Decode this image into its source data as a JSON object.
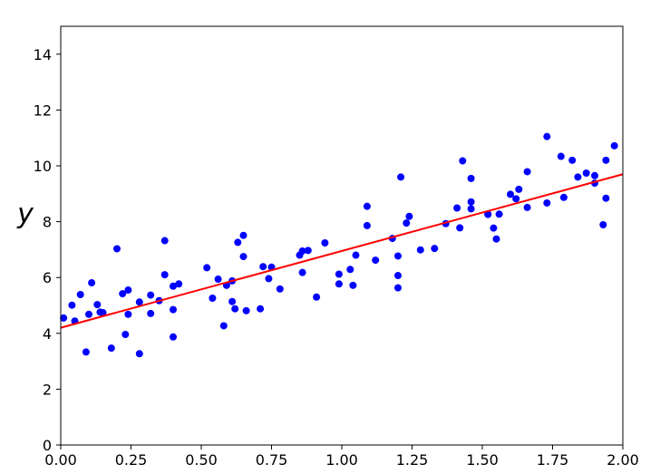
{
  "figure": {
    "background": "#ffffff",
    "spine_color": "#000000",
    "tick_color": "#000000"
  },
  "chart_data": {
    "type": "scatter",
    "title": "",
    "xlabel": "",
    "ylabel": "y",
    "xlim": [
      0.0,
      2.0
    ],
    "ylim": [
      0,
      15
    ],
    "grid": false,
    "legend": null,
    "x_ticks": [
      0.0,
      0.25,
      0.5,
      0.75,
      1.0,
      1.25,
      1.5,
      1.75,
      2.0
    ],
    "x_tick_labels": [
      "0.00",
      "0.25",
      "0.50",
      "0.75",
      "1.00",
      "1.25",
      "1.50",
      "1.75",
      "2.00"
    ],
    "y_ticks": [
      0,
      2,
      4,
      6,
      8,
      10,
      12,
      14
    ],
    "y_tick_labels": [
      "0",
      "2",
      "4",
      "6",
      "8",
      "10",
      "12",
      "14"
    ],
    "series": [
      {
        "name": "scatter-points",
        "type": "scatter",
        "color": "#0000ff",
        "marker_size": 4,
        "points": [
          [
            0.01,
            4.55
          ],
          [
            0.04,
            5.01
          ],
          [
            0.05,
            4.44
          ],
          [
            0.07,
            5.39
          ],
          [
            0.09,
            3.33
          ],
          [
            0.1,
            4.68
          ],
          [
            0.11,
            5.81
          ],
          [
            0.13,
            5.03
          ],
          [
            0.14,
            4.76
          ],
          [
            0.15,
            4.74
          ],
          [
            0.18,
            3.47
          ],
          [
            0.2,
            7.03
          ],
          [
            0.22,
            5.42
          ],
          [
            0.23,
            3.96
          ],
          [
            0.24,
            5.55
          ],
          [
            0.24,
            4.68
          ],
          [
            0.28,
            5.12
          ],
          [
            0.28,
            3.27
          ],
          [
            0.32,
            5.37
          ],
          [
            0.32,
            4.71
          ],
          [
            0.35,
            5.17
          ],
          [
            0.37,
            7.32
          ],
          [
            0.37,
            6.1
          ],
          [
            0.4,
            5.69
          ],
          [
            0.4,
            3.87
          ],
          [
            0.4,
            4.85
          ],
          [
            0.42,
            5.77
          ],
          [
            0.52,
            6.35
          ],
          [
            0.54,
            5.26
          ],
          [
            0.56,
            5.94
          ],
          [
            0.58,
            4.27
          ],
          [
            0.59,
            5.72
          ],
          [
            0.61,
            5.14
          ],
          [
            0.61,
            5.88
          ],
          [
            0.62,
            4.88
          ],
          [
            0.63,
            7.26
          ],
          [
            0.65,
            7.51
          ],
          [
            0.65,
            6.75
          ],
          [
            0.66,
            4.81
          ],
          [
            0.71,
            4.88
          ],
          [
            0.72,
            6.39
          ],
          [
            0.74,
            5.96
          ],
          [
            0.75,
            6.37
          ],
          [
            0.78,
            5.59
          ],
          [
            0.85,
            6.8
          ],
          [
            0.86,
            6.95
          ],
          [
            0.86,
            6.18
          ],
          [
            0.88,
            6.97
          ],
          [
            0.91,
            5.3
          ],
          [
            0.94,
            7.24
          ],
          [
            0.99,
            6.12
          ],
          [
            0.99,
            5.77
          ],
          [
            1.03,
            6.29
          ],
          [
            1.04,
            5.72
          ],
          [
            1.05,
            6.8
          ],
          [
            1.09,
            8.55
          ],
          [
            1.09,
            7.86
          ],
          [
            1.12,
            6.62
          ],
          [
            1.18,
            7.4
          ],
          [
            1.2,
            6.07
          ],
          [
            1.2,
            5.63
          ],
          [
            1.2,
            6.77
          ],
          [
            1.21,
            9.6
          ],
          [
            1.23,
            7.95
          ],
          [
            1.24,
            8.19
          ],
          [
            1.28,
            6.99
          ],
          [
            1.33,
            7.04
          ],
          [
            1.37,
            7.93
          ],
          [
            1.41,
            8.49
          ],
          [
            1.42,
            7.78
          ],
          [
            1.43,
            10.18
          ],
          [
            1.46,
            9.55
          ],
          [
            1.46,
            8.71
          ],
          [
            1.46,
            8.46
          ],
          [
            1.52,
            8.27
          ],
          [
            1.52,
            8.26
          ],
          [
            1.54,
            7.77
          ],
          [
            1.55,
            7.38
          ],
          [
            1.56,
            8.27
          ],
          [
            1.6,
            8.98
          ],
          [
            1.62,
            8.82
          ],
          [
            1.63,
            9.16
          ],
          [
            1.66,
            8.51
          ],
          [
            1.66,
            9.79
          ],
          [
            1.73,
            11.05
          ],
          [
            1.73,
            8.67
          ],
          [
            1.78,
            10.34
          ],
          [
            1.79,
            8.87
          ],
          [
            1.82,
            10.2
          ],
          [
            1.84,
            9.6
          ],
          [
            1.87,
            9.74
          ],
          [
            1.9,
            9.65
          ],
          [
            1.9,
            9.38
          ],
          [
            1.93,
            7.89
          ],
          [
            1.94,
            8.84
          ],
          [
            1.94,
            10.2
          ],
          [
            1.97,
            10.72
          ]
        ]
      },
      {
        "name": "fit-line",
        "type": "line",
        "color": "#ff0000",
        "line_width": 2,
        "points": [
          [
            0.0,
            4.2
          ],
          [
            2.0,
            9.7
          ]
        ]
      }
    ]
  }
}
